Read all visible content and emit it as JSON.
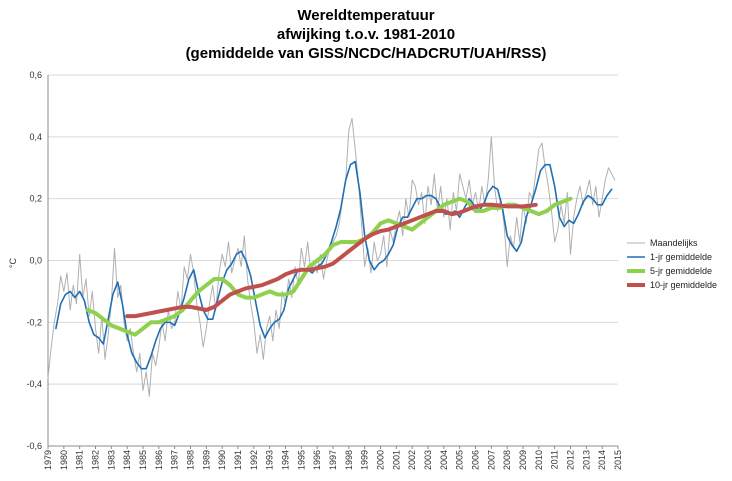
{
  "chart_data": {
    "type": "line",
    "title": [
      "Wereldtemperatuur",
      "afwijking t.o.v. 1981-2010",
      "(gemiddelde van GISS/NCDC/HADCRUT/UAH/RSS)"
    ],
    "xlabel": "",
    "ylabel": "°C",
    "xlim": [
      1979,
      2015
    ],
    "ylim": [
      -0.6,
      0.6
    ],
    "y_ticks": [
      "-0,6",
      "-0,4",
      "-0,2",
      "0,0",
      "0,2",
      "0,4",
      "0,6"
    ],
    "x_ticks": [
      "1979",
      "1980",
      "1981",
      "1982",
      "1983",
      "1984",
      "1985",
      "1986",
      "1987",
      "1988",
      "1989",
      "1990",
      "1991",
      "1992",
      "1993",
      "1994",
      "1995",
      "1996",
      "1997",
      "1998",
      "1999",
      "2000",
      "2001",
      "2002",
      "2003",
      "2004",
      "2005",
      "2006",
      "2007",
      "2008",
      "2009",
      "2010",
      "2011",
      "2012",
      "2013",
      "2014",
      "2015"
    ],
    "grid": "horizontal",
    "legend_position": "right",
    "series": [
      {
        "name": "Maandelijks",
        "color": "#b0b0b0",
        "x": [
          1979.0,
          1979.2,
          1979.4,
          1979.6,
          1979.8,
          1980.0,
          1980.2,
          1980.4,
          1980.6,
          1980.8,
          1981.0,
          1981.2,
          1981.4,
          1981.6,
          1981.8,
          1982.0,
          1982.2,
          1982.4,
          1982.6,
          1982.8,
          1983.0,
          1983.2,
          1983.4,
          1983.6,
          1983.8,
          1984.0,
          1984.2,
          1984.4,
          1984.6,
          1984.8,
          1985.0,
          1985.2,
          1985.4,
          1985.6,
          1985.8,
          1986.0,
          1986.2,
          1986.4,
          1986.6,
          1986.8,
          1987.0,
          1987.2,
          1987.4,
          1987.6,
          1987.8,
          1988.0,
          1988.2,
          1988.4,
          1988.6,
          1988.8,
          1989.0,
          1989.2,
          1989.4,
          1989.6,
          1989.8,
          1990.0,
          1990.2,
          1990.4,
          1990.6,
          1990.8,
          1991.0,
          1991.2,
          1991.4,
          1991.6,
          1991.8,
          1992.0,
          1992.2,
          1992.4,
          1992.6,
          1992.8,
          1993.0,
          1993.2,
          1993.4,
          1993.6,
          1993.8,
          1994.0,
          1994.2,
          1994.4,
          1994.6,
          1994.8,
          1995.0,
          1995.2,
          1995.4,
          1995.6,
          1995.8,
          1996.0,
          1996.2,
          1996.4,
          1996.6,
          1996.8,
          1997.0,
          1997.2,
          1997.4,
          1997.6,
          1997.8,
          1998.0,
          1998.2,
          1998.4,
          1998.6,
          1998.8,
          1999.0,
          1999.2,
          1999.4,
          1999.6,
          1999.8,
          2000.0,
          2000.2,
          2000.4,
          2000.6,
          2000.8,
          2001.0,
          2001.2,
          2001.4,
          2001.6,
          2001.8,
          2002.0,
          2002.2,
          2002.4,
          2002.6,
          2002.8,
          2003.0,
          2003.2,
          2003.4,
          2003.6,
          2003.8,
          2004.0,
          2004.2,
          2004.4,
          2004.6,
          2004.8,
          2005.0,
          2005.2,
          2005.4,
          2005.6,
          2005.8,
          2006.0,
          2006.2,
          2006.4,
          2006.6,
          2006.8,
          2007.0,
          2007.2,
          2007.4,
          2007.6,
          2007.8,
          2008.0,
          2008.2,
          2008.4,
          2008.6,
          2008.8,
          2009.0,
          2009.2,
          2009.4,
          2009.6,
          2009.8,
          2010.0,
          2010.2,
          2010.4,
          2010.6,
          2010.8,
          2011.0,
          2011.2,
          2011.4,
          2011.6,
          2011.8,
          2012.0,
          2012.2,
          2012.4,
          2012.6,
          2012.8,
          2013.0,
          2013.2,
          2013.4,
          2013.6,
          2013.8,
          2014.0,
          2014.2,
          2014.4,
          2014.6,
          2014.8
        ],
        "y": [
          -0.38,
          -0.28,
          -0.2,
          -0.14,
          -0.05,
          -0.1,
          -0.04,
          -0.16,
          -0.08,
          -0.14,
          0.02,
          -0.12,
          -0.06,
          -0.18,
          -0.1,
          -0.22,
          -0.3,
          -0.18,
          -0.32,
          -0.24,
          -0.14,
          0.04,
          -0.12,
          -0.08,
          -0.2,
          -0.26,
          -0.22,
          -0.3,
          -0.36,
          -0.3,
          -0.42,
          -0.36,
          -0.44,
          -0.3,
          -0.34,
          -0.28,
          -0.2,
          -0.26,
          -0.16,
          -0.22,
          -0.2,
          -0.1,
          -0.16,
          -0.02,
          -0.06,
          0.02,
          -0.04,
          -0.14,
          -0.2,
          -0.28,
          -0.22,
          -0.14,
          -0.08,
          -0.16,
          -0.04,
          0.02,
          -0.02,
          0.06,
          -0.04,
          0.0,
          0.04,
          -0.02,
          0.08,
          -0.06,
          -0.14,
          -0.2,
          -0.3,
          -0.24,
          -0.32,
          -0.22,
          -0.18,
          -0.26,
          -0.16,
          -0.22,
          -0.1,
          -0.14,
          -0.06,
          -0.12,
          -0.02,
          -0.08,
          0.04,
          -0.02,
          0.06,
          -0.04,
          0.0,
          -0.04,
          0.02,
          -0.06,
          0.0,
          0.04,
          0.06,
          0.08,
          0.12,
          0.2,
          0.26,
          0.42,
          0.46,
          0.36,
          0.26,
          0.12,
          -0.02,
          0.04,
          -0.04,
          0.06,
          0.0,
          0.02,
          0.08,
          -0.02,
          0.1,
          0.06,
          0.12,
          0.16,
          0.08,
          0.2,
          0.14,
          0.26,
          0.24,
          0.18,
          0.22,
          0.12,
          0.24,
          0.18,
          0.28,
          0.16,
          0.24,
          0.14,
          0.2,
          0.1,
          0.22,
          0.16,
          0.28,
          0.24,
          0.2,
          0.26,
          0.18,
          0.22,
          0.16,
          0.24,
          0.18,
          0.26,
          0.4,
          0.24,
          0.16,
          0.2,
          0.12,
          -0.02,
          0.08,
          0.04,
          0.14,
          0.06,
          0.18,
          0.12,
          0.22,
          0.2,
          0.28,
          0.36,
          0.38,
          0.3,
          0.24,
          0.16,
          0.06,
          0.1,
          0.18,
          0.12,
          0.22,
          0.02,
          0.14,
          0.2,
          0.24,
          0.18,
          0.22,
          0.26,
          0.18,
          0.24,
          0.14,
          0.2,
          0.26,
          0.3,
          0.28,
          0.26
        ]
      },
      {
        "name": "1-jr gemiddelde",
        "color": "#1f6fb4",
        "x": [
          1979.5,
          1979.8,
          1980.1,
          1980.4,
          1980.7,
          1981.0,
          1981.3,
          1981.6,
          1981.9,
          1982.2,
          1982.5,
          1982.8,
          1983.1,
          1983.4,
          1983.7,
          1984.0,
          1984.3,
          1984.6,
          1984.9,
          1985.2,
          1985.5,
          1985.8,
          1986.1,
          1986.4,
          1986.7,
          1987.0,
          1987.3,
          1987.6,
          1987.9,
          1988.2,
          1988.5,
          1988.8,
          1989.1,
          1989.4,
          1989.7,
          1990.0,
          1990.3,
          1990.6,
          1990.9,
          1991.2,
          1991.5,
          1991.8,
          1992.1,
          1992.4,
          1992.7,
          1993.0,
          1993.3,
          1993.6,
          1993.9,
          1994.2,
          1994.5,
          1994.8,
          1995.1,
          1995.4,
          1995.7,
          1996.0,
          1996.3,
          1996.6,
          1996.9,
          1997.2,
          1997.5,
          1997.8,
          1998.1,
          1998.4,
          1998.7,
          1999.0,
          1999.3,
          1999.6,
          1999.9,
          2000.2,
          2000.5,
          2000.8,
          2001.1,
          2001.4,
          2001.7,
          2002.0,
          2002.3,
          2002.6,
          2002.9,
          2003.2,
          2003.5,
          2003.8,
          2004.1,
          2004.4,
          2004.7,
          2005.0,
          2005.3,
          2005.6,
          2005.9,
          2006.2,
          2006.5,
          2006.8,
          2007.1,
          2007.4,
          2007.7,
          2008.0,
          2008.3,
          2008.6,
          2008.9,
          2009.2,
          2009.5,
          2009.8,
          2010.1,
          2010.4,
          2010.7,
          2011.0,
          2011.3,
          2011.6,
          2011.9,
          2012.2,
          2012.5,
          2012.8,
          2013.1,
          2013.4,
          2013.7,
          2014.0,
          2014.3,
          2014.6
        ],
        "y": [
          -0.22,
          -0.14,
          -0.11,
          -0.1,
          -0.12,
          -0.1,
          -0.13,
          -0.2,
          -0.24,
          -0.25,
          -0.27,
          -0.19,
          -0.11,
          -0.07,
          -0.14,
          -0.24,
          -0.3,
          -0.33,
          -0.35,
          -0.35,
          -0.31,
          -0.26,
          -0.22,
          -0.2,
          -0.2,
          -0.21,
          -0.17,
          -0.12,
          -0.06,
          -0.03,
          -0.1,
          -0.16,
          -0.19,
          -0.19,
          -0.13,
          -0.07,
          -0.03,
          -0.01,
          0.02,
          0.03,
          0.0,
          -0.05,
          -0.13,
          -0.21,
          -0.25,
          -0.22,
          -0.2,
          -0.19,
          -0.16,
          -0.09,
          -0.06,
          -0.03,
          -0.03,
          -0.03,
          -0.04,
          -0.02,
          -0.01,
          0.02,
          0.06,
          0.11,
          0.17,
          0.26,
          0.31,
          0.32,
          0.22,
          0.08,
          0.0,
          -0.03,
          -0.01,
          0.0,
          0.02,
          0.05,
          0.11,
          0.14,
          0.14,
          0.17,
          0.2,
          0.2,
          0.21,
          0.21,
          0.2,
          0.17,
          0.15,
          0.15,
          0.16,
          0.14,
          0.17,
          0.2,
          0.18,
          0.16,
          0.18,
          0.22,
          0.24,
          0.23,
          0.17,
          0.08,
          0.05,
          0.03,
          0.06,
          0.14,
          0.18,
          0.23,
          0.29,
          0.31,
          0.31,
          0.24,
          0.14,
          0.11,
          0.13,
          0.12,
          0.15,
          0.19,
          0.21,
          0.2,
          0.18,
          0.18,
          0.21,
          0.23
        ]
      },
      {
        "name": "5-jr gemiddelde",
        "color": "#8fd14f",
        "x": [
          1981.5,
          1982.0,
          1982.5,
          1983.0,
          1983.5,
          1984.0,
          1984.5,
          1985.0,
          1985.5,
          1986.0,
          1986.5,
          1987.0,
          1987.5,
          1988.0,
          1988.5,
          1989.0,
          1989.5,
          1990.0,
          1990.5,
          1991.0,
          1991.5,
          1992.0,
          1992.5,
          1993.0,
          1993.5,
          1994.0,
          1994.5,
          1995.0,
          1995.5,
          1996.0,
          1996.5,
          1997.0,
          1997.5,
          1998.0,
          1998.5,
          1999.0,
          1999.5,
          2000.0,
          2000.5,
          2001.0,
          2001.5,
          2002.0,
          2002.5,
          2003.0,
          2003.5,
          2004.0,
          2004.5,
          2005.0,
          2005.5,
          2006.0,
          2006.5,
          2007.0,
          2007.5,
          2008.0,
          2008.5,
          2009.0,
          2009.5,
          2010.0,
          2010.5,
          2011.0,
          2011.5,
          2012.0
        ],
        "y": [
          -0.16,
          -0.17,
          -0.19,
          -0.21,
          -0.22,
          -0.23,
          -0.24,
          -0.22,
          -0.2,
          -0.2,
          -0.19,
          -0.18,
          -0.16,
          -0.13,
          -0.1,
          -0.08,
          -0.06,
          -0.06,
          -0.08,
          -0.11,
          -0.12,
          -0.12,
          -0.11,
          -0.1,
          -0.11,
          -0.11,
          -0.1,
          -0.06,
          -0.02,
          0.0,
          0.02,
          0.05,
          0.06,
          0.06,
          0.06,
          0.07,
          0.09,
          0.12,
          0.13,
          0.12,
          0.11,
          0.1,
          0.12,
          0.14,
          0.16,
          0.18,
          0.19,
          0.2,
          0.19,
          0.16,
          0.16,
          0.17,
          0.17,
          0.18,
          0.18,
          0.17,
          0.16,
          0.15,
          0.16,
          0.18,
          0.19,
          0.2
        ]
      },
      {
        "name": "10-jr gemiddelde",
        "color": "#c0504d",
        "x": [
          1984.0,
          1984.5,
          1985.0,
          1985.5,
          1986.0,
          1986.5,
          1987.0,
          1987.5,
          1988.0,
          1988.5,
          1989.0,
          1989.5,
          1990.0,
          1990.5,
          1991.0,
          1991.5,
          1992.0,
          1992.5,
          1993.0,
          1993.5,
          1994.0,
          1994.5,
          1995.0,
          1995.5,
          1996.0,
          1996.5,
          1997.0,
          1997.5,
          1998.0,
          1998.5,
          1999.0,
          1999.5,
          2000.0,
          2000.5,
          2001.0,
          2001.5,
          2002.0,
          2002.5,
          2003.0,
          2003.5,
          2004.0,
          2004.5,
          2005.0,
          2005.5,
          2006.0,
          2006.5,
          2007.0,
          2007.5,
          2008.0,
          2008.5,
          2009.0,
          2009.5,
          2009.8
        ],
        "y": [
          -0.18,
          -0.18,
          -0.175,
          -0.17,
          -0.165,
          -0.16,
          -0.155,
          -0.15,
          -0.15,
          -0.155,
          -0.16,
          -0.15,
          -0.13,
          -0.11,
          -0.1,
          -0.09,
          -0.085,
          -0.08,
          -0.07,
          -0.06,
          -0.045,
          -0.035,
          -0.03,
          -0.03,
          -0.025,
          -0.02,
          -0.01,
          0.01,
          0.03,
          0.05,
          0.07,
          0.085,
          0.095,
          0.1,
          0.11,
          0.12,
          0.13,
          0.14,
          0.15,
          0.16,
          0.16,
          0.15,
          0.155,
          0.165,
          0.175,
          0.18,
          0.18,
          0.178,
          0.175,
          0.175,
          0.175,
          0.178,
          0.18
        ]
      }
    ]
  }
}
